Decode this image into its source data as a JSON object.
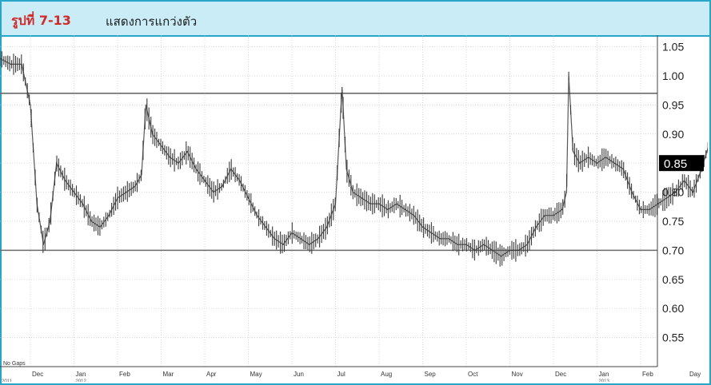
{
  "figure": {
    "label": "รูปที่ 7-13",
    "title": "แสดงการแกว่งตัว"
  },
  "colors": {
    "border": "#28a6c8",
    "header_bg": "#c9ecf6",
    "label": "#d12a2a",
    "price": "#3a3a3a",
    "grid": "#c8c8c8",
    "level_line": "#6a6a6a",
    "marker_bg": "#000000",
    "marker_text": "#ffffff"
  },
  "chart_data": {
    "type": "line",
    "ylim": [
      0.5,
      1.07
    ],
    "y_ticks": [
      "1.05",
      "1.00",
      "0.95",
      "0.90",
      "0.85",
      "0.80",
      "0.75",
      "0.70",
      "0.65",
      "0.60",
      "0.55"
    ],
    "x_ticks": [
      "Dec",
      "Jan",
      "Feb",
      "Mar",
      "Apr",
      "May",
      "Jun",
      "Jul",
      "Aug",
      "Sep",
      "Oct",
      "Nov",
      "Dec",
      "Jan",
      "Feb"
    ],
    "year_labels": [
      "2011",
      "2012",
      "2013"
    ],
    "corner_note": "No Gaps",
    "x_axis_unit": "Day",
    "last_price_label": "0.85",
    "last_price": 0.85,
    "grid": true,
    "levels": [
      {
        "name": "resistance",
        "value": 0.97
      },
      {
        "name": "support",
        "value": 0.7
      }
    ],
    "series": [
      {
        "points": [
          [
            0.0,
            1.03
          ],
          [
            0.25,
            1.02
          ],
          [
            0.5,
            1.02
          ],
          [
            0.7,
            0.95
          ],
          [
            0.85,
            0.78
          ],
          [
            1.0,
            0.71
          ],
          [
            1.15,
            0.75
          ],
          [
            1.3,
            0.85
          ],
          [
            1.5,
            0.82
          ],
          [
            1.7,
            0.8
          ],
          [
            1.9,
            0.78
          ],
          [
            2.1,
            0.75
          ],
          [
            2.3,
            0.74
          ],
          [
            2.5,
            0.76
          ],
          [
            2.7,
            0.79
          ],
          [
            2.9,
            0.8
          ],
          [
            3.1,
            0.81
          ],
          [
            3.25,
            0.83
          ],
          [
            3.35,
            0.95
          ],
          [
            3.5,
            0.9
          ],
          [
            3.7,
            0.88
          ],
          [
            3.9,
            0.86
          ],
          [
            4.1,
            0.85
          ],
          [
            4.3,
            0.87
          ],
          [
            4.5,
            0.84
          ],
          [
            4.7,
            0.82
          ],
          [
            4.9,
            0.8
          ],
          [
            5.1,
            0.81
          ],
          [
            5.3,
            0.84
          ],
          [
            5.5,
            0.82
          ],
          [
            5.7,
            0.79
          ],
          [
            5.9,
            0.76
          ],
          [
            6.1,
            0.74
          ],
          [
            6.3,
            0.72
          ],
          [
            6.5,
            0.71
          ],
          [
            6.7,
            0.73
          ],
          [
            6.9,
            0.72
          ],
          [
            7.1,
            0.71
          ],
          [
            7.3,
            0.72
          ],
          [
            7.5,
            0.74
          ],
          [
            7.7,
            0.78
          ],
          [
            7.85,
            0.98
          ],
          [
            7.95,
            0.84
          ],
          [
            8.1,
            0.8
          ],
          [
            8.3,
            0.79
          ],
          [
            8.5,
            0.78
          ],
          [
            8.7,
            0.78
          ],
          [
            8.9,
            0.77
          ],
          [
            9.1,
            0.78
          ],
          [
            9.3,
            0.77
          ],
          [
            9.5,
            0.76
          ],
          [
            9.7,
            0.74
          ],
          [
            9.9,
            0.73
          ],
          [
            10.1,
            0.72
          ],
          [
            10.3,
            0.72
          ],
          [
            10.5,
            0.71
          ],
          [
            10.7,
            0.71
          ],
          [
            10.9,
            0.7
          ],
          [
            11.1,
            0.71
          ],
          [
            11.3,
            0.7
          ],
          [
            11.5,
            0.69
          ],
          [
            11.7,
            0.7
          ],
          [
            11.9,
            0.7
          ],
          [
            12.1,
            0.71
          ],
          [
            12.3,
            0.74
          ],
          [
            12.5,
            0.76
          ],
          [
            12.7,
            0.76
          ],
          [
            12.9,
            0.77
          ],
          [
            13.0,
            0.8
          ],
          [
            13.05,
            1.0
          ],
          [
            13.15,
            0.87
          ],
          [
            13.3,
            0.85
          ],
          [
            13.5,
            0.86
          ],
          [
            13.7,
            0.85
          ],
          [
            13.9,
            0.86
          ],
          [
            14.1,
            0.85
          ],
          [
            14.3,
            0.84
          ],
          [
            14.5,
            0.8
          ],
          [
            14.7,
            0.77
          ],
          [
            14.9,
            0.77
          ],
          [
            15.1,
            0.78
          ],
          [
            15.3,
            0.79
          ],
          [
            15.5,
            0.8
          ],
          [
            15.7,
            0.82
          ],
          [
            15.9,
            0.8
          ],
          [
            16.1,
            0.84
          ],
          [
            16.3,
            0.89
          ],
          [
            16.5,
            0.91
          ],
          [
            16.7,
            0.9
          ],
          [
            16.9,
            0.92
          ],
          [
            17.1,
            0.94
          ],
          [
            17.25,
            0.95
          ],
          [
            17.4,
            0.93
          ],
          [
            17.5,
            0.87
          ],
          [
            17.6,
            0.8
          ],
          [
            17.8,
            0.84
          ],
          [
            18.0,
            0.9
          ],
          [
            18.2,
            0.88
          ],
          [
            18.4,
            0.87
          ],
          [
            18.6,
            0.88
          ],
          [
            18.8,
            0.87
          ],
          [
            18.95,
            0.9
          ],
          [
            19.1,
            0.88
          ],
          [
            19.25,
            0.85
          ]
        ]
      }
    ]
  }
}
